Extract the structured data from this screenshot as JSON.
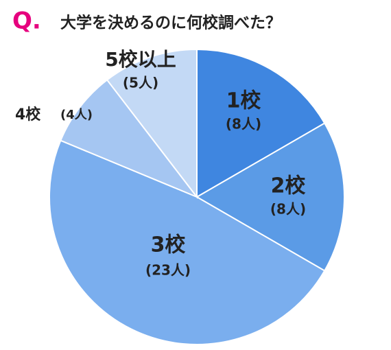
{
  "title_prefix": "Q.",
  "chart_data": {
    "type": "pie",
    "title": "大学を決めるのに何校調べた？",
    "categories": [
      "1校",
      "2校",
      "3校",
      "4校",
      "5校以上"
    ],
    "values": [
      8,
      8,
      23,
      4,
      5
    ],
    "value_labels": [
      "(8人)",
      "(8人)",
      "(23人)",
      "(4人)",
      "(5人)"
    ],
    "colors": [
      "#3f86e0",
      "#5b9be6",
      "#7aaeee",
      "#a5c6f2",
      "#c3d9f5"
    ]
  }
}
